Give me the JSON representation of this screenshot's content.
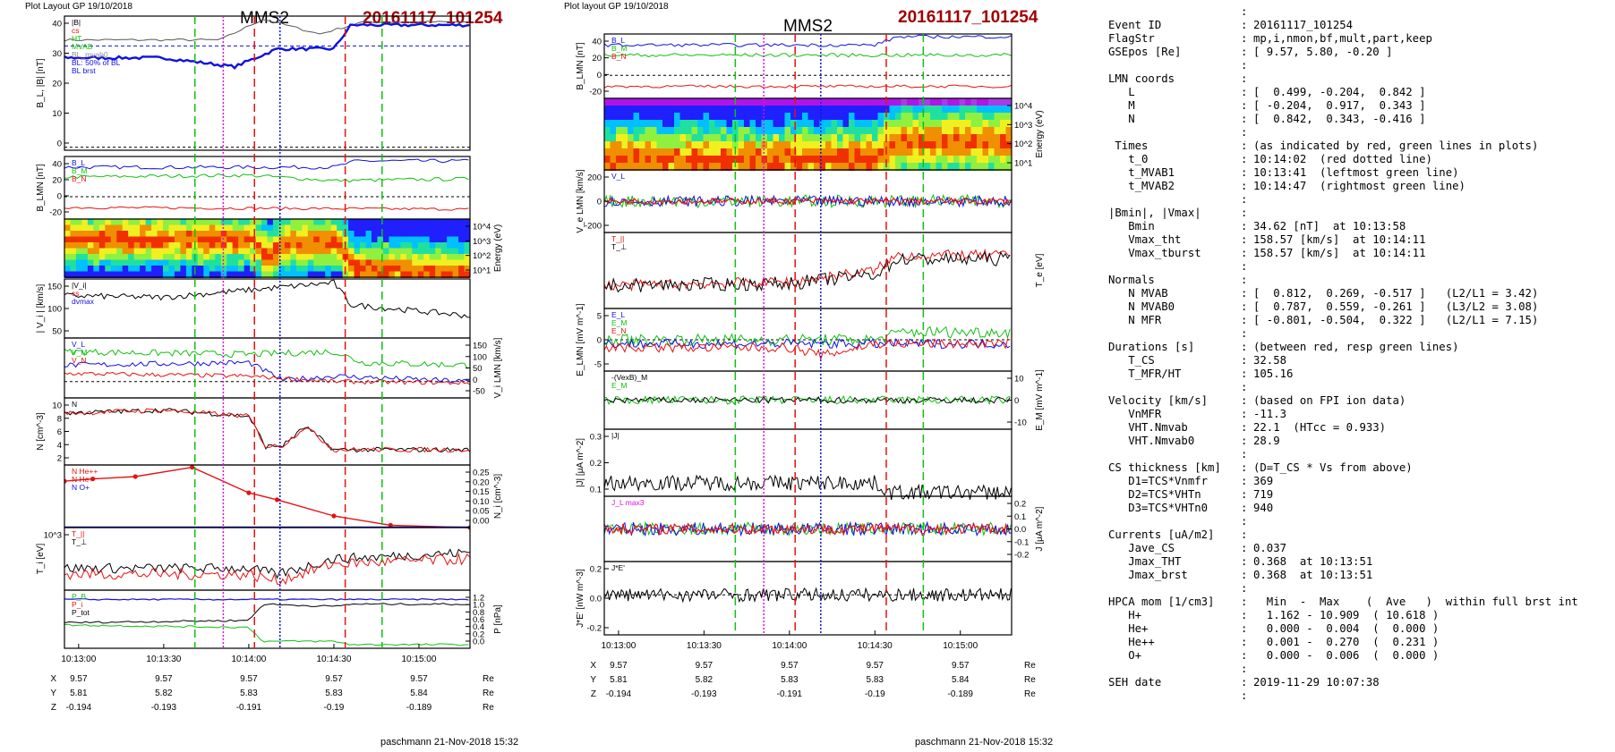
{
  "colors": {
    "red": "#e81010",
    "green": "#10c010",
    "blue": "#1010e0",
    "magenta": "#e010e0",
    "black": "#000000",
    "darkred": "#a00000",
    "gray": "#909090"
  },
  "plot1": {
    "header_left": "Plot Layout GP 19/10/2018",
    "spacecraft": "MMS2",
    "event": "20161117_101254",
    "footer": "paschmann 21-Nov-2018 15:32",
    "time_ticks": [
      "10:13:00",
      "10:13:30",
      "10:14:00",
      "10:14:30",
      "10:15:00"
    ],
    "position_rows": [
      {
        "label": "X",
        "values": [
          "9.57",
          "9.57",
          "9.57",
          "9.57",
          "9.57"
        ],
        "unit": "Re"
      },
      {
        "label": "Y",
        "values": [
          "5.81",
          "5.82",
          "5.83",
          "5.83",
          "5.84"
        ],
        "unit": "Re"
      },
      {
        "label": "Z",
        "values": [
          "-0.194",
          "-0.193",
          "-0.191",
          "-0.19",
          "-0.189"
        ],
        "unit": "Re"
      }
    ],
    "panels": [
      {
        "id": "b_total",
        "ylabel": "B_L, |B| [nT]",
        "yticks": [
          "40",
          "30",
          "20",
          "10",
          "0"
        ],
        "ylim": [
          0,
          45
        ],
        "legend": [
          "|B|",
          "cs",
          "HT",
          "MVAB",
          "BL_mvab0",
          "BL: 50% of BL",
          "BL brst"
        ]
      },
      {
        "id": "b_lmn",
        "ylabel": "B_LMN [nT]",
        "yticks": [
          "40",
          "20",
          "0",
          "-20"
        ],
        "ylim": [
          -25,
          45
        ],
        "legend": [
          "B_L",
          "B_M",
          "B_N"
        ]
      },
      {
        "id": "ion_spec",
        "ylabel_right": "Energy (eV)",
        "yticks_right": [
          "10^4",
          "10^3",
          "10^2",
          "10^1"
        ]
      },
      {
        "id": "vi_mag",
        "ylabel": "| V_i | [km/s]",
        "yticks": [
          "150",
          "100",
          "50"
        ],
        "ylim": [
          0,
          160
        ],
        "legend": [
          "|V_i|",
          "cs",
          "dvmax"
        ]
      },
      {
        "id": "vi_lmn",
        "ylabel_right": "V_i LMN [km/s]",
        "yticks_right": [
          "150",
          "100",
          "50",
          "0",
          "-50"
        ],
        "ylim": [
          -60,
          160
        ],
        "legend": [
          "V_L",
          "V_M",
          "V_N"
        ]
      },
      {
        "id": "density",
        "ylabel": "N [cm^-3]",
        "yticks": [
          "10",
          "8",
          "6",
          "4",
          "2"
        ],
        "ylim": [
          0,
          11
        ],
        "legend": [
          "N"
        ]
      },
      {
        "id": "minor_ions",
        "ylabel_right": "N_i [cm^-3]",
        "yticks_right": [
          "0.25",
          "0.20",
          "0.15",
          "0.10",
          "0.05",
          "0.00"
        ],
        "ylim": [
          0,
          0.27
        ],
        "legend": [
          "N He++",
          "N He+",
          "N O+"
        ]
      },
      {
        "id": "ti",
        "ylabel": "T_i [eV]",
        "yticks": [
          "10^3"
        ],
        "legend": [
          "T_||",
          "T_⊥"
        ]
      },
      {
        "id": "pressure",
        "ylabel_right": "P [nPa]",
        "yticks_right": [
          "1.2",
          "1.0",
          "0.8",
          "0.6",
          "0.4",
          "0.2",
          "0.0"
        ],
        "ylim": [
          0,
          1.25
        ],
        "legend": [
          "P_B",
          "P_i",
          "P_tot"
        ]
      }
    ]
  },
  "plot2": {
    "header_left": "Plot layout GP 19/10/2018",
    "spacecraft": "MMS2",
    "event": "20161117_101254",
    "footer": "paschmann 21-Nov-2018 15:32",
    "time_ticks": [
      "10:13:00",
      "10:13:30",
      "10:14:00",
      "10:14:30",
      "10:15:00"
    ],
    "position_rows": [
      {
        "label": "X",
        "values": [
          "9.57",
          "9.57",
          "9.57",
          "9.57",
          "9.57"
        ],
        "unit": "Re"
      },
      {
        "label": "Y",
        "values": [
          "5.81",
          "5.82",
          "5.83",
          "5.83",
          "5.84"
        ],
        "unit": "Re"
      },
      {
        "label": "Z",
        "values": [
          "-0.194",
          "-0.193",
          "-0.191",
          "-0.19",
          "-0.189"
        ],
        "unit": "Re"
      }
    ],
    "panels": [
      {
        "id": "b_lmn",
        "ylabel": "B_LMN [nT]",
        "yticks": [
          "40",
          "20",
          "0",
          "-20"
        ],
        "ylim": [
          -25,
          45
        ],
        "legend": [
          "B_L",
          "B_M",
          "B_N"
        ]
      },
      {
        "id": "elec_spec",
        "ylabel_right": "Energy (eV)",
        "yticks_right": [
          "10^4",
          "10^3",
          "10^2",
          "10^1"
        ]
      },
      {
        "id": "ve_lmn",
        "ylabel": "V_e LMN [km/s]",
        "yticks": [
          "200",
          "0",
          "-200"
        ],
        "ylim": [
          -300,
          300
        ],
        "legend": [
          "V_L"
        ]
      },
      {
        "id": "te",
        "ylabel_right": "T_e [eV]",
        "legend": [
          "T_||",
          "T_⊥"
        ]
      },
      {
        "id": "e_lmn",
        "ylabel": "E_LMN [mV m^-1]",
        "yticks": [
          "5",
          "0",
          "-5"
        ],
        "ylim": [
          -8,
          8
        ],
        "legend": [
          "E_L",
          "E_M",
          "E_N"
        ]
      },
      {
        "id": "em",
        "ylabel_right": "E_M [mV m^-1]",
        "yticks_right": [
          "10",
          "0",
          "-10"
        ],
        "ylim": [
          -14,
          14
        ],
        "legend": [
          "-(VexB)_M",
          "E_M"
        ]
      },
      {
        "id": "j_mag",
        "ylabel": "|J| [μA m^-2]",
        "yticks": [
          "0.3",
          "0.2",
          "0.1"
        ],
        "ylim": [
          0,
          0.35
        ],
        "legend": [
          "|J|"
        ]
      },
      {
        "id": "j_lmn",
        "ylabel_right": "J [μA m^-2]",
        "yticks_right": [
          "0.2",
          "0.1",
          "0.0",
          "-0.1",
          "-0.2"
        ],
        "ylim": [
          -0.25,
          0.25
        ],
        "legend": [
          "J_L max3"
        ]
      },
      {
        "id": "jdote",
        "ylabel": "J*E' [nW m^-3]",
        "yticks": [
          "0.2",
          "0.0",
          "-0.2"
        ],
        "ylim": [
          -0.3,
          0.25
        ],
        "legend": [
          "J*E'"
        ]
      }
    ]
  },
  "chart_data": [
    {
      "type": "line",
      "title": "MMS2 20161117_101254",
      "xlabel": "",
      "x_range": [
        "10:12:55",
        "10:15:18"
      ],
      "markers": {
        "red_dashed": [
          "10:14:02",
          "10:14:34"
        ],
        "green_dashed": [
          "10:13:41",
          "10:14:47"
        ],
        "magenta_dotted": [
          "10:13:51"
        ],
        "blue_dotted": [
          "10:14:11"
        ]
      },
      "series": [
        {
          "name": "|B|",
          "x": [
            "10:13:00",
            "10:13:30",
            "10:13:55",
            "10:14:05",
            "10:14:20",
            "10:14:40",
            "10:15:15"
          ],
          "values": [
            34,
            35,
            37,
            42,
            40,
            43,
            43
          ]
        },
        {
          "name": "BL brst",
          "x": [
            "10:13:00",
            "10:13:30",
            "10:13:55",
            "10:14:05",
            "10:14:20",
            "10:14:40",
            "10:15:15"
          ],
          "values": [
            30,
            31,
            28,
            34,
            33,
            42,
            42
          ]
        },
        {
          "name": "N He++",
          "x": [
            "10:12:55",
            "10:13:05",
            "10:13:20",
            "10:13:40",
            "10:14:00",
            "10:14:10",
            "10:14:30",
            "10:14:50",
            "10:15:18"
          ],
          "values": [
            0.2,
            0.21,
            0.22,
            0.26,
            0.15,
            0.12,
            0.05,
            0.01,
            0.0
          ]
        },
        {
          "name": "N",
          "x": [
            "10:13:00",
            "10:13:30",
            "10:14:00",
            "10:14:10",
            "10:14:20",
            "10:14:30",
            "10:15:00"
          ],
          "values": [
            8.5,
            9,
            8,
            3,
            6,
            2.5,
            2.5
          ]
        }
      ]
    }
  ],
  "info": {
    "lines": [
      {
        "k": "",
        "v": "",
        "c": ":"
      },
      {
        "k": "Event ID",
        "v": "20161117_101254",
        "c": ":"
      },
      {
        "k": "FlagStr",
        "v": "mp,i,nmon,bf,mult,part,keep",
        "c": ":"
      },
      {
        "k": "GSEpos [Re]",
        "v": "[ 9.57, 5.80, -0.20 ]",
        "c": ":"
      },
      {
        "k": "",
        "v": "",
        "c": ":"
      },
      {
        "k": "LMN coords",
        "v": "",
        "c": ":"
      },
      {
        "k": "   L",
        "v": "[  0.499, -0.204,  0.842 ]",
        "c": ":"
      },
      {
        "k": "   M",
        "v": "[ -0.204,  0.917,  0.343 ]",
        "c": ":"
      },
      {
        "k": "   N",
        "v": "[  0.842,  0.343, -0.416 ]",
        "c": ":"
      },
      {
        "k": "",
        "v": "",
        "c": ":"
      },
      {
        "k": " Times",
        "v": "(as indicated by red, green lines in plots)",
        "c": ":"
      },
      {
        "k": "   t_0",
        "v": "10:14:02  (red dotted line)",
        "c": ":"
      },
      {
        "k": "   t_MVAB1",
        "v": "10:13:41  (leftmost green line)",
        "c": ":"
      },
      {
        "k": "   t_MVAB2",
        "v": "10:14:47  (rightmost green line)",
        "c": ":"
      },
      {
        "k": "",
        "v": "",
        "c": ":"
      },
      {
        "k": "|Bmin|, |Vmax|",
        "v": "",
        "c": ":"
      },
      {
        "k": "   Bmin",
        "v": "34.62 [nT]  at 10:13:58",
        "c": ":"
      },
      {
        "k": "   Vmax_tht",
        "v": "158.57 [km/s]  at 10:14:11",
        "c": ":"
      },
      {
        "k": "   Vmax_tburst",
        "v": "158.57 [km/s]  at 10:14:11",
        "c": ":"
      },
      {
        "k": "",
        "v": "",
        "c": ":"
      },
      {
        "k": "Normals",
        "v": "",
        "c": ":"
      },
      {
        "k": "   N MVAB",
        "v": "[  0.812,  0.269, -0.517 ]   (L2/L1 = 3.42)",
        "c": ":"
      },
      {
        "k": "   N MVAB0",
        "v": "[  0.787,  0.559, -0.261 ]   (L3/L2 = 3.08)",
        "c": ":"
      },
      {
        "k": "   N MFR",
        "v": "[ -0.801, -0.504,  0.322 ]   (L2/L1 = 7.15)",
        "c": ":"
      },
      {
        "k": "",
        "v": "",
        "c": ":"
      },
      {
        "k": "Durations [s]",
        "v": "(between red, resp green lines)",
        "c": ":"
      },
      {
        "k": "   T_CS",
        "v": "32.58",
        "c": ":"
      },
      {
        "k": "   T_MFR/HT",
        "v": "105.16",
        "c": ":"
      },
      {
        "k": "",
        "v": "",
        "c": ":"
      },
      {
        "k": "Velocity [km/s]",
        "v": "(based on FPI ion data)",
        "c": ":"
      },
      {
        "k": "   VnMFR",
        "v": "-11.3",
        "c": ":"
      },
      {
        "k": "   VHT.Nmvab",
        "v": "22.1  (HTcc = 0.933)",
        "c": ":"
      },
      {
        "k": "   VHT.Nmvab0",
        "v": "28.9",
        "c": ":"
      },
      {
        "k": "",
        "v": "",
        "c": ":"
      },
      {
        "k": "CS thickness [km]",
        "v": "(D=T_CS * Vs from above)",
        "c": ":"
      },
      {
        "k": "   D1=TCS*Vnmfr",
        "v": "369",
        "c": ":"
      },
      {
        "k": "   D2=TCS*VHTn",
        "v": "719",
        "c": ":"
      },
      {
        "k": "   D3=TCS*VHTn0",
        "v": "940",
        "c": ":"
      },
      {
        "k": "",
        "v": "",
        "c": ":"
      },
      {
        "k": "Currents [uA/m2]",
        "v": "",
        "c": ":"
      },
      {
        "k": "   Jave_CS",
        "v": "0.037",
        "c": ":"
      },
      {
        "k": "   Jmax_THT",
        "v": "0.368  at 10:13:51",
        "c": ":"
      },
      {
        "k": "   Jmax_brst",
        "v": "0.368  at 10:13:51",
        "c": ":"
      },
      {
        "k": "",
        "v": "",
        "c": ":"
      },
      {
        "k": "HPCA mom [1/cm3]",
        "v": "  Min  -  Max    (  Ave   )  within full brst int",
        "c": ":"
      },
      {
        "k": "   H+",
        "v": "  1.162 - 10.909  ( 10.618 )",
        "c": ":"
      },
      {
        "k": "   He+",
        "v": "  0.000 -  0.004  (  0.000 )",
        "c": ":"
      },
      {
        "k": "   He++",
        "v": "  0.001 -  0.270  (  0.231 )",
        "c": ":"
      },
      {
        "k": "   O+",
        "v": "  0.000 -  0.006  (  0.000 )",
        "c": ":"
      },
      {
        "k": "",
        "v": "",
        "c": ":"
      },
      {
        "k": "SEH date",
        "v": "2019-11-29 10:07:38",
        "c": ":"
      },
      {
        "k": "",
        "v": "",
        "c": ":"
      }
    ]
  }
}
